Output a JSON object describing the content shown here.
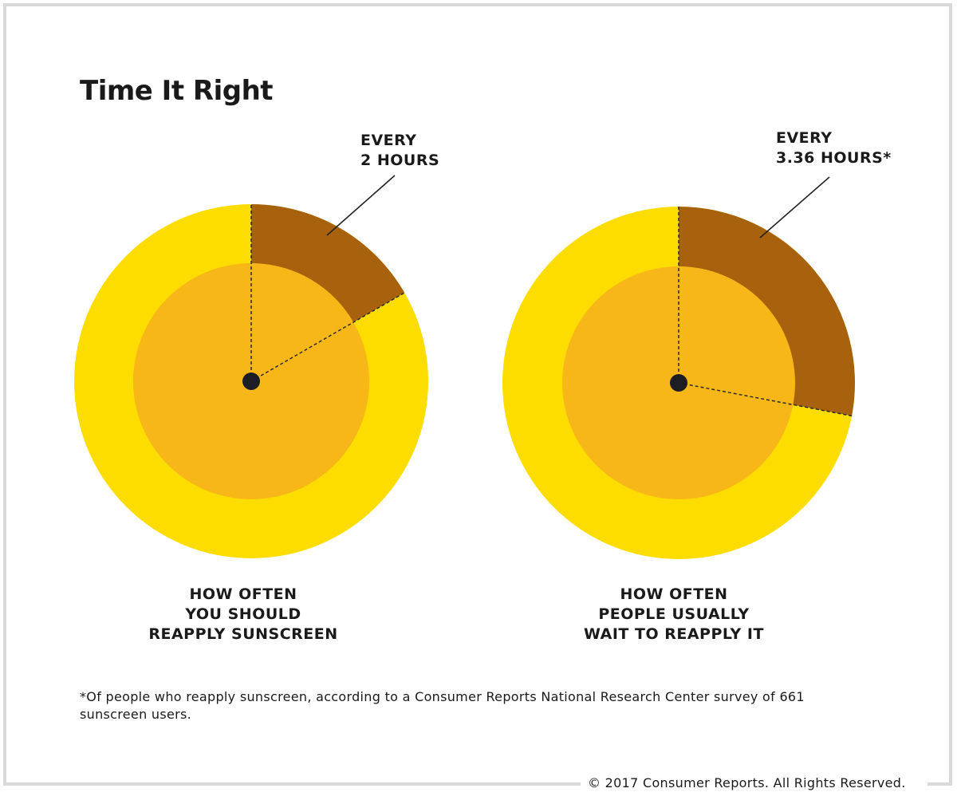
{
  "chart_data": [
    {
      "type": "pie",
      "title": "Time It Right",
      "unit": "hours on a 12-hour clock",
      "value": 2,
      "label": "EVERY\n2 HOURS",
      "caption": "HOW OFTEN\nYOU SHOULD\nREAPPLY SUNSCREEN"
    },
    {
      "type": "pie",
      "unit": "hours on a 12-hour clock",
      "value": 3.36,
      "label": "EVERY\n3.36 HOURS*",
      "caption": "HOW OFTEN\nPEOPLE USUALLY\nWAIT TO REAPPLY IT"
    }
  ],
  "title": "Time It Right",
  "labels": {
    "left_1": "EVERY",
    "left_2": "2 HOURS",
    "right_1": "EVERY",
    "right_2": "3.36 HOURS*"
  },
  "captions": {
    "left": [
      "HOW OFTEN",
      "YOU SHOULD",
      "REAPPLY SUNSCREEN"
    ],
    "right": [
      "HOW OFTEN",
      "PEOPLE USUALLY",
      "WAIT TO REAPPLY IT"
    ]
  },
  "footnote": "*Of people who reapply sunscreen, according to a Consumer Reports National Research Center survey of 661 sunscreen users.",
  "copyright": "© 2017 Consumer Reports. All Rights Reserved.",
  "colors": {
    "outer": "#FDDC00",
    "wedge": "#A8620E",
    "inner": "#F7B718",
    "dot": "#1d1d24",
    "frame": "#d9d9d9"
  }
}
